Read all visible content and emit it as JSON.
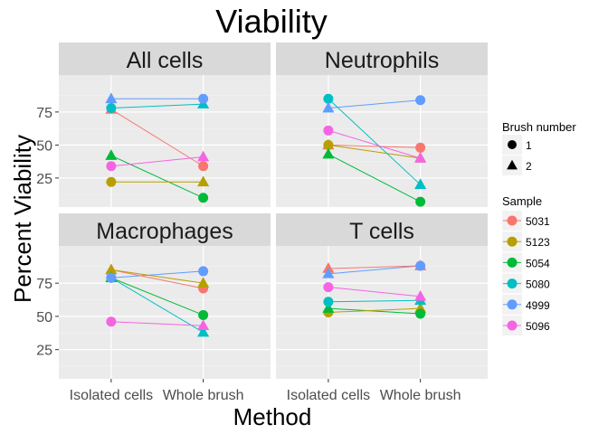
{
  "chart_data": {
    "type": "scatter",
    "title": "Viability",
    "xlabel": "Method",
    "ylabel": "Percent Viability",
    "x_categories": [
      "Isolated cells",
      "Whole brush"
    ],
    "ylim": [
      3,
      103
    ],
    "yticks": [
      25,
      50,
      75
    ],
    "grid": true,
    "legend_position": "right",
    "shape_legend": {
      "title": "Brush number",
      "entries": [
        {
          "label": "1",
          "shape": "circle"
        },
        {
          "label": "2",
          "shape": "triangle"
        }
      ]
    },
    "color_legend": {
      "title": "Sample",
      "entries": [
        {
          "label": "5031",
          "color": "#F8766D"
        },
        {
          "label": "5123",
          "color": "#B79F00"
        },
        {
          "label": "5054",
          "color": "#00BA38"
        },
        {
          "label": "5080",
          "color": "#00BFC4"
        },
        {
          "label": "4999",
          "color": "#619CFF"
        },
        {
          "label": "5096",
          "color": "#F564E3"
        }
      ]
    },
    "panels": [
      {
        "title": "All cells",
        "series": [
          {
            "sample": "5031",
            "brush": "1",
            "values": [
              null,
              34
            ]
          },
          {
            "sample": "5031",
            "brush": "2",
            "values": [
              77,
              null
            ]
          },
          {
            "sample": "5123",
            "brush": "1",
            "values": [
              22,
              null
            ]
          },
          {
            "sample": "5123",
            "brush": "2",
            "values": [
              null,
              22
            ]
          },
          {
            "sample": "5054",
            "brush": "1",
            "values": [
              null,
              10
            ]
          },
          {
            "sample": "5054",
            "brush": "2",
            "values": [
              42,
              null
            ]
          },
          {
            "sample": "5080",
            "brush": "1",
            "values": [
              78,
              null
            ]
          },
          {
            "sample": "5080",
            "brush": "2",
            "values": [
              null,
              81
            ]
          },
          {
            "sample": "4999",
            "brush": "1",
            "values": [
              null,
              85
            ]
          },
          {
            "sample": "4999",
            "brush": "2",
            "values": [
              85,
              null
            ]
          },
          {
            "sample": "5096",
            "brush": "1",
            "values": [
              34,
              null
            ]
          },
          {
            "sample": "5096",
            "brush": "2",
            "values": [
              null,
              41
            ]
          }
        ]
      },
      {
        "title": "Neutrophils",
        "series": [
          {
            "sample": "5031",
            "brush": "1",
            "values": [
              null,
              48
            ]
          },
          {
            "sample": "5031",
            "brush": "2",
            "values": [
              50,
              null
            ]
          },
          {
            "sample": "5123",
            "brush": "1",
            "values": [
              50,
              null
            ]
          },
          {
            "sample": "5123",
            "brush": "2",
            "values": [
              null,
              40
            ]
          },
          {
            "sample": "5054",
            "brush": "1",
            "values": [
              null,
              7
            ]
          },
          {
            "sample": "5054",
            "brush": "2",
            "values": [
              43,
              null
            ]
          },
          {
            "sample": "5080",
            "brush": "1",
            "values": [
              85,
              null
            ]
          },
          {
            "sample": "5080",
            "brush": "2",
            "values": [
              null,
              20
            ]
          },
          {
            "sample": "4999",
            "brush": "1",
            "values": [
              null,
              84
            ]
          },
          {
            "sample": "4999",
            "brush": "2",
            "values": [
              78,
              null
            ]
          },
          {
            "sample": "5096",
            "brush": "1",
            "values": [
              61,
              null
            ]
          },
          {
            "sample": "5096",
            "brush": "2",
            "values": [
              null,
              40
            ]
          }
        ]
      },
      {
        "title": "Macrophages",
        "series": [
          {
            "sample": "5031",
            "brush": "1",
            "values": [
              null,
              71
            ]
          },
          {
            "sample": "5031",
            "brush": "2",
            "values": [
              85,
              null
            ]
          },
          {
            "sample": "5123",
            "brush": "2",
            "values": [
              85,
              75
            ]
          },
          {
            "sample": "5054",
            "brush": "1",
            "values": [
              null,
              51
            ]
          },
          {
            "sample": "5054",
            "brush": "2",
            "values": [
              79,
              null
            ]
          },
          {
            "sample": "5080",
            "brush": "1",
            "values": [
              79,
              null
            ]
          },
          {
            "sample": "5080",
            "brush": "2",
            "values": [
              null,
              38
            ]
          },
          {
            "sample": "4999",
            "brush": "1",
            "values": [
              79,
              84
            ]
          },
          {
            "sample": "5096",
            "brush": "1",
            "values": [
              46,
              null
            ]
          },
          {
            "sample": "5096",
            "brush": "2",
            "values": [
              null,
              43
            ]
          }
        ]
      },
      {
        "title": "T cells",
        "series": [
          {
            "sample": "5031",
            "brush": "2",
            "values": [
              86,
              88
            ]
          },
          {
            "sample": "5123",
            "brush": "1",
            "values": [
              53,
              null
            ]
          },
          {
            "sample": "5123",
            "brush": "2",
            "values": [
              null,
              56
            ]
          },
          {
            "sample": "5054",
            "brush": "1",
            "values": [
              null,
              52
            ]
          },
          {
            "sample": "5054",
            "brush": "2",
            "values": [
              56,
              null
            ]
          },
          {
            "sample": "5080",
            "brush": "1",
            "values": [
              61,
              null
            ]
          },
          {
            "sample": "5080",
            "brush": "2",
            "values": [
              null,
              62
            ]
          },
          {
            "sample": "4999",
            "brush": "1",
            "values": [
              null,
              88
            ]
          },
          {
            "sample": "4999",
            "brush": "2",
            "values": [
              82,
              null
            ]
          },
          {
            "sample": "5096",
            "brush": "1",
            "values": [
              72,
              null
            ]
          },
          {
            "sample": "5096",
            "brush": "2",
            "values": [
              null,
              65
            ]
          }
        ]
      }
    ]
  }
}
